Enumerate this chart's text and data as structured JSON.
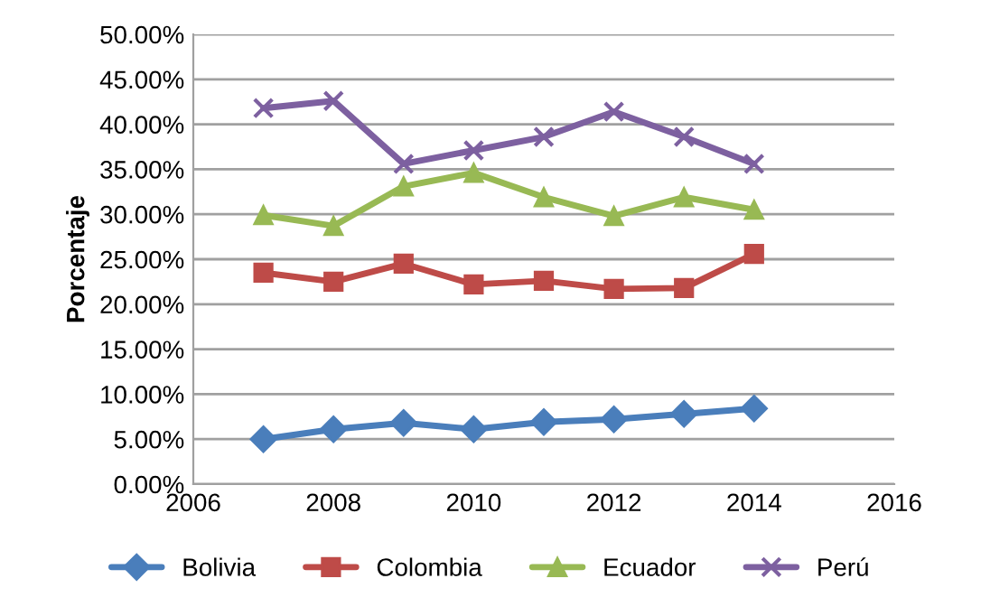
{
  "chart_data": {
    "type": "line",
    "ylabel": "Porcentaje",
    "x": [
      2007,
      2008,
      2009,
      2010,
      2011,
      2012,
      2013,
      2014
    ],
    "series": [
      {
        "name": "Bolivia",
        "color": "#4a7ebb",
        "marker": "diamond",
        "values": [
          5.0,
          6.1,
          6.8,
          6.1,
          6.9,
          7.2,
          7.8,
          8.4
        ]
      },
      {
        "name": "Colombia",
        "color": "#be4b48",
        "marker": "square",
        "values": [
          23.5,
          22.5,
          24.5,
          22.2,
          22.6,
          21.7,
          21.8,
          25.6
        ]
      },
      {
        "name": "Ecuador",
        "color": "#98b954",
        "marker": "triangle",
        "values": [
          29.9,
          28.7,
          33.1,
          34.6,
          31.9,
          29.8,
          31.9,
          30.5
        ]
      },
      {
        "name": "Perú",
        "color": "#7d60a0",
        "marker": "cross",
        "values": [
          41.8,
          42.6,
          35.6,
          37.1,
          38.6,
          41.4,
          38.6,
          35.6
        ]
      }
    ],
    "xlim": [
      2006,
      2016
    ],
    "xticks": [
      2006,
      2008,
      2010,
      2012,
      2014,
      2016
    ],
    "ylim": [
      0,
      50
    ],
    "yticks": [
      {
        "value": 0,
        "label": "0.00%"
      },
      {
        "value": 5,
        "label": "5.00%"
      },
      {
        "value": 10,
        "label": "10.00%"
      },
      {
        "value": 15,
        "label": "15.00%"
      },
      {
        "value": 20,
        "label": "20.00%"
      },
      {
        "value": 25,
        "label": "25.00%"
      },
      {
        "value": 30,
        "label": "30.00%"
      },
      {
        "value": 35,
        "label": "35.00%"
      },
      {
        "value": 40,
        "label": "40.00%"
      },
      {
        "value": 45,
        "label": "45.00%"
      },
      {
        "value": 50,
        "label": "50.00%"
      }
    ],
    "grid": "y",
    "legend": "bottom",
    "line_style": "solid"
  }
}
